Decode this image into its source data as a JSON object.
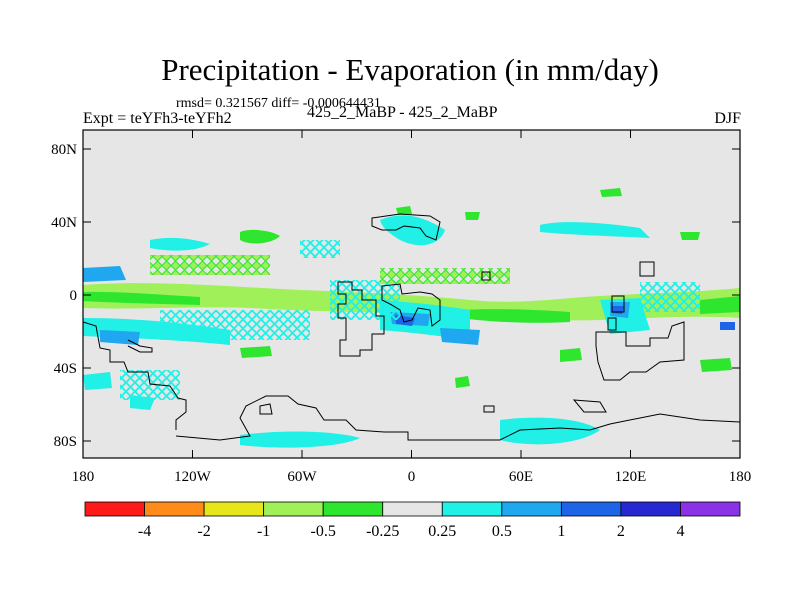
{
  "header": {
    "title": "Precipitation - Evaporation (in mm/day)",
    "stats": "rmsd= 0.321567 diff= -0.000644431",
    "expt": "Expt = teYFh3-teYFh2",
    "cases": "425_2_MaBP - 425_2_MaBP",
    "season": "DJF"
  },
  "map": {
    "y_ticks": [
      "80N",
      "40N",
      "0",
      "40S",
      "80S"
    ],
    "x_ticks": [
      "180",
      "120W",
      "60W",
      "0",
      "60E",
      "120E",
      "180"
    ],
    "background_color": "#e6e6e6",
    "field_colors": {
      "light_green": "#a0f05a",
      "green": "#2ee62e",
      "cyan": "#20f0e6",
      "light_blue": "#1fa7f0",
      "blue": "#1e64e6",
      "dark_blue": "#2828d2"
    }
  },
  "colorbar": {
    "labels": [
      "-4",
      "-2",
      "-1",
      "-0.5",
      "-0.25",
      "0.25",
      "0.5",
      "1",
      "2",
      "4"
    ],
    "colors": [
      "#ff1a1a",
      "#ff8c1a",
      "#e6e61a",
      "#a0f05a",
      "#2ee62e",
      "#e6e6e6",
      "#20f0e6",
      "#1fa7f0",
      "#1e64e6",
      "#2828d2",
      "#8c32e6"
    ]
  }
}
